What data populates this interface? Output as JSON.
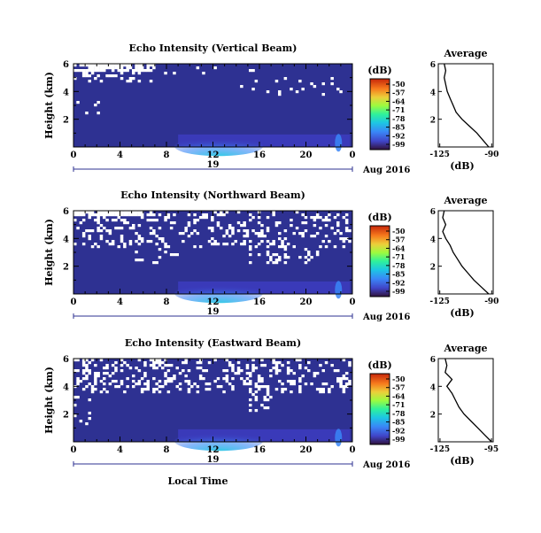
{
  "chart_data": [
    {
      "type": "heatmap",
      "title": "Echo Intensity (Vertical Beam)",
      "ylabel": "Height (km)",
      "yticks": [
        "6",
        "4",
        "2"
      ],
      "ylim": [
        0,
        6
      ],
      "xticks": [
        "0",
        "4",
        "8",
        "12",
        "16",
        "20",
        "0"
      ],
      "xlim": [
        0,
        24
      ],
      "date_day": "19",
      "date_label": "Aug 2016",
      "colorbar": {
        "title": "(dB)",
        "ticks": [
          "-50",
          "-57",
          "-64",
          "-71",
          "-78",
          "-85",
          "-92",
          "-99"
        ]
      },
      "average_panel": {
        "title": "Average",
        "xlabel": "(dB)",
        "xticks": [
          "-125",
          "-90"
        ],
        "yticks": [
          "6",
          "4",
          "2"
        ],
        "profile": [
          [
            -92,
            0
          ],
          [
            -96,
            0.5
          ],
          [
            -100,
            1
          ],
          [
            -105,
            1.5
          ],
          [
            -110,
            2
          ],
          [
            -114,
            2.5
          ],
          [
            -116,
            3
          ],
          [
            -118,
            3.5
          ],
          [
            -120,
            4
          ],
          [
            -121,
            4.5
          ],
          [
            -122,
            5
          ],
          [
            -121,
            5.5
          ],
          [
            -122,
            6
          ]
        ]
      }
    },
    {
      "type": "heatmap",
      "title": "Echo Intensity (Northward Beam)",
      "ylabel": "Height (km)",
      "yticks": [
        "6",
        "4",
        "2"
      ],
      "ylim": [
        0,
        6
      ],
      "xticks": [
        "0",
        "4",
        "8",
        "12",
        "16",
        "20",
        "0"
      ],
      "xlim": [
        0,
        24
      ],
      "date_day": "19",
      "date_label": "Aug 2016",
      "colorbar": {
        "title": "(dB)",
        "ticks": [
          "-50",
          "-57",
          "-64",
          "-71",
          "-78",
          "-85",
          "-92",
          "-99"
        ]
      },
      "average_panel": {
        "title": "Average",
        "xlabel": "(dB)",
        "xticks": [
          "-125",
          "-90"
        ],
        "yticks": [
          "6",
          "4",
          "2"
        ],
        "profile": [
          [
            -92,
            0
          ],
          [
            -97,
            0.5
          ],
          [
            -102,
            1
          ],
          [
            -106,
            1.5
          ],
          [
            -110,
            2
          ],
          [
            -113,
            2.5
          ],
          [
            -116,
            3
          ],
          [
            -118,
            3.5
          ],
          [
            -121,
            4
          ],
          [
            -123,
            4.5
          ],
          [
            -121,
            5
          ],
          [
            -123,
            5.5
          ],
          [
            -122,
            6
          ]
        ]
      }
    },
    {
      "type": "heatmap",
      "title": "Echo Intensity (Eastward Beam)",
      "ylabel": "Height (km)",
      "yticks": [
        "6",
        "4",
        "2"
      ],
      "ylim": [
        0,
        6
      ],
      "xticks": [
        "0",
        "4",
        "8",
        "12",
        "16",
        "20",
        "0"
      ],
      "xlim": [
        0,
        24
      ],
      "date_day": "19",
      "date_label": "Aug 2016",
      "xlabel": "Local Time",
      "colorbar": {
        "title": "(dB)",
        "ticks": [
          "-50",
          "-57",
          "-64",
          "-71",
          "-78",
          "-85",
          "-92",
          "-99"
        ]
      },
      "average_panel": {
        "title": "Average",
        "xlabel": "(dB)",
        "xticks": [
          "-125",
          "-95"
        ],
        "yticks": [
          "6",
          "4",
          "2"
        ],
        "profile": [
          [
            -95,
            0
          ],
          [
            -99,
            0.5
          ],
          [
            -103,
            1
          ],
          [
            -107,
            1.5
          ],
          [
            -111,
            2
          ],
          [
            -114,
            2.5
          ],
          [
            -116,
            3
          ],
          [
            -118,
            3.5
          ],
          [
            -121,
            4
          ],
          [
            -118,
            4.5
          ],
          [
            -122,
            5
          ],
          [
            -121,
            5.5
          ],
          [
            -122,
            6
          ]
        ]
      }
    }
  ],
  "colors": {
    "background_fill": "#2e3192",
    "missing_data": "#ffffff",
    "colormap": [
      "#30123b",
      "#3f3ec6",
      "#3b82f5",
      "#1bcde0",
      "#3ff58f",
      "#a4fc3c",
      "#f5c33a",
      "#f5791a",
      "#d23106",
      "#8f1a05"
    ]
  }
}
